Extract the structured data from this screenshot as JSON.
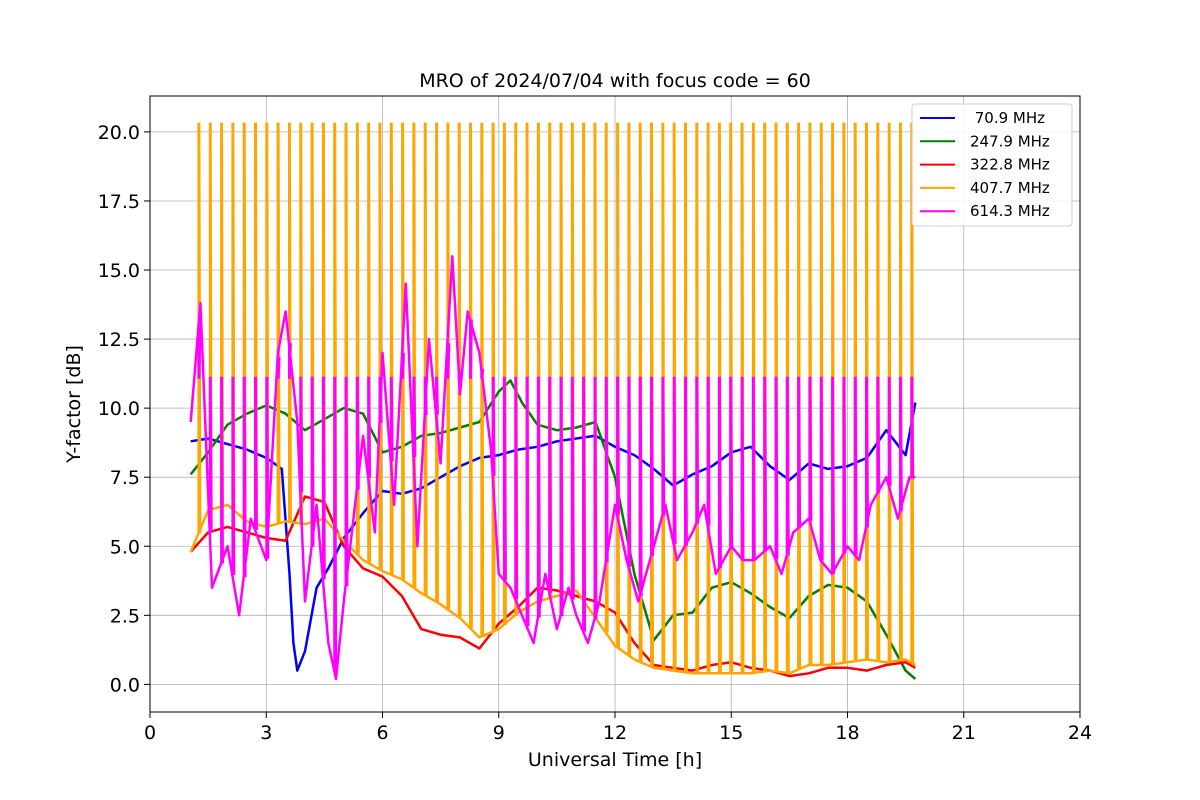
{
  "chart_data": {
    "type": "line",
    "title": "MRO of 2024/07/04 with focus code = 60",
    "xlabel": "Universal Time [h]",
    "ylabel": "Y-factor [dB]",
    "xlim": [
      0,
      24
    ],
    "ylim": [
      -1.0,
      21.3
    ],
    "xticks": [
      0,
      3,
      6,
      9,
      12,
      15,
      18,
      21,
      24
    ],
    "xtick_labels": [
      "0",
      "3",
      "6",
      "9",
      "12",
      "15",
      "18",
      "21",
      "24"
    ],
    "yticks": [
      0,
      2.5,
      5,
      7.5,
      10,
      12.5,
      15,
      17.5,
      20
    ],
    "ytick_labels": [
      "0.0",
      "2.5",
      "5.0",
      "7.5",
      "10.0",
      "12.5",
      "15.0",
      "17.5",
      "20.0"
    ],
    "grid": true,
    "legend_position": "top-right",
    "x_range_of_data": [
      1.05,
      19.75
    ],
    "periodic_cal_spikes": {
      "start": 1.25,
      "period": 0.292,
      "end": 19.7,
      "peak": 20.3,
      "mid_plateau": 11.1
    },
    "series": [
      {
        "name": " 70.9 MHz",
        "color": "#0000ff",
        "x": [
          1.05,
          1.5,
          2.0,
          2.5,
          3.0,
          3.4,
          3.6,
          3.7,
          3.8,
          4.0,
          4.3,
          4.6,
          5.0,
          5.5,
          6.0,
          6.5,
          7.0,
          7.5,
          8.0,
          8.5,
          9.0,
          9.5,
          10.0,
          10.5,
          11.0,
          11.5,
          12.0,
          12.5,
          13.0,
          13.5,
          14.0,
          14.5,
          15.0,
          15.5,
          16.0,
          16.5,
          17.0,
          17.5,
          18.0,
          18.5,
          19.0,
          19.5,
          19.75
        ],
        "y": [
          8.8,
          8.9,
          8.7,
          8.5,
          8.2,
          7.8,
          4.0,
          1.5,
          0.5,
          1.2,
          3.5,
          4.2,
          5.3,
          6.2,
          7.0,
          6.9,
          7.1,
          7.5,
          7.9,
          8.2,
          8.3,
          8.5,
          8.6,
          8.8,
          8.9,
          9.0,
          8.6,
          8.3,
          7.8,
          7.2,
          7.6,
          7.9,
          8.4,
          8.6,
          7.9,
          7.4,
          8.0,
          7.8,
          7.9,
          8.2,
          9.2,
          8.3,
          10.2
        ]
      },
      {
        "name": "247.9 MHz",
        "color": "#008000",
        "x": [
          1.05,
          1.5,
          2.0,
          2.5,
          3.0,
          3.5,
          4.0,
          4.5,
          5.0,
          5.5,
          6.0,
          6.5,
          7.0,
          7.5,
          8.0,
          8.5,
          9.0,
          9.3,
          9.6,
          10.0,
          10.5,
          11.0,
          11.5,
          12.0,
          12.5,
          13.0,
          13.5,
          14.0,
          14.5,
          15.0,
          15.5,
          16.0,
          16.5,
          17.0,
          17.5,
          18.0,
          18.5,
          19.0,
          19.5,
          19.75
        ],
        "y": [
          7.6,
          8.4,
          9.4,
          9.8,
          10.1,
          9.8,
          9.2,
          9.6,
          10.0,
          9.8,
          8.4,
          8.6,
          9.0,
          9.1,
          9.3,
          9.5,
          10.6,
          11.0,
          10.2,
          9.4,
          9.2,
          9.3,
          9.5,
          7.5,
          4.0,
          1.6,
          2.5,
          2.6,
          3.5,
          3.7,
          3.3,
          2.8,
          2.4,
          3.2,
          3.6,
          3.5,
          3.0,
          1.8,
          0.5,
          0.2
        ]
      },
      {
        "name": "322.8 MHz",
        "color": "#ff0000",
        "x": [
          1.05,
          1.5,
          2.0,
          2.5,
          3.0,
          3.5,
          4.0,
          4.5,
          5.0,
          5.5,
          6.0,
          6.5,
          7.0,
          7.5,
          8.0,
          8.5,
          9.0,
          9.5,
          10.0,
          10.5,
          11.0,
          11.5,
          12.0,
          12.5,
          13.0,
          13.5,
          14.0,
          14.5,
          15.0,
          15.5,
          16.0,
          16.5,
          17.0,
          17.5,
          18.0,
          18.5,
          19.0,
          19.5,
          19.75
        ],
        "y": [
          4.8,
          5.5,
          5.7,
          5.5,
          5.3,
          5.2,
          6.8,
          6.6,
          5.0,
          4.2,
          3.9,
          3.2,
          2.0,
          1.8,
          1.7,
          1.3,
          2.2,
          2.8,
          3.5,
          3.4,
          3.2,
          3.0,
          2.6,
          1.5,
          0.7,
          0.6,
          0.5,
          0.7,
          0.8,
          0.6,
          0.5,
          0.3,
          0.4,
          0.6,
          0.6,
          0.5,
          0.7,
          0.8,
          0.6
        ]
      },
      {
        "name": "407.7 MHz",
        "color": "#ffa500",
        "x": [
          1.05,
          1.5,
          2.0,
          2.5,
          3.0,
          3.5,
          4.0,
          4.5,
          5.0,
          5.5,
          6.0,
          6.5,
          7.0,
          7.5,
          8.0,
          8.5,
          9.0,
          9.5,
          10.0,
          10.5,
          11.0,
          11.5,
          12.0,
          12.5,
          13.0,
          13.5,
          14.0,
          14.5,
          15.0,
          15.5,
          16.0,
          16.5,
          17.0,
          17.5,
          18.0,
          18.5,
          19.0,
          19.5,
          19.75
        ],
        "y": [
          4.8,
          6.3,
          6.5,
          5.9,
          5.7,
          5.9,
          5.8,
          6.0,
          5.2,
          4.5,
          4.1,
          3.8,
          3.3,
          2.9,
          2.4,
          1.7,
          2.0,
          2.6,
          3.0,
          3.2,
          3.4,
          2.4,
          1.4,
          0.9,
          0.6,
          0.5,
          0.4,
          0.4,
          0.4,
          0.4,
          0.5,
          0.4,
          0.7,
          0.7,
          0.8,
          0.9,
          0.8,
          0.9,
          0.7
        ]
      },
      {
        "name": "614.3 MHz",
        "color": "#ff00ff",
        "x": [
          1.05,
          1.3,
          1.6,
          2.0,
          2.3,
          2.6,
          3.0,
          3.3,
          3.5,
          3.8,
          4.0,
          4.3,
          4.6,
          4.8,
          5.0,
          5.5,
          5.8,
          6.0,
          6.3,
          6.6,
          6.9,
          7.2,
          7.5,
          7.8,
          8.0,
          8.2,
          8.5,
          8.8,
          9.0,
          9.3,
          9.6,
          9.9,
          10.2,
          10.5,
          10.8,
          11.0,
          11.3,
          11.6,
          12.0,
          12.3,
          12.6,
          13.0,
          13.3,
          13.6,
          14.0,
          14.3,
          14.6,
          15.0,
          15.3,
          15.6,
          16.0,
          16.3,
          16.6,
          17.0,
          17.3,
          17.6,
          18.0,
          18.3,
          18.6,
          19.0,
          19.3,
          19.6,
          19.75
        ],
        "y": [
          9.5,
          13.8,
          3.5,
          5.0,
          2.5,
          6.0,
          4.5,
          12.0,
          13.5,
          9.5,
          3.0,
          6.5,
          1.5,
          0.2,
          3.0,
          9.0,
          5.5,
          12.0,
          6.5,
          14.5,
          5.0,
          12.5,
          8.0,
          15.5,
          10.5,
          13.5,
          12.0,
          8.5,
          4.0,
          3.5,
          2.5,
          1.5,
          4.0,
          2.0,
          3.5,
          2.5,
          1.5,
          3.0,
          6.5,
          4.5,
          3.0,
          5.0,
          6.5,
          4.5,
          5.5,
          6.5,
          4.0,
          5.0,
          4.5,
          4.5,
          5.0,
          4.0,
          5.5,
          6.0,
          4.5,
          4.0,
          5.0,
          4.5,
          6.5,
          7.5,
          6.0,
          7.5,
          7.5
        ]
      }
    ]
  }
}
